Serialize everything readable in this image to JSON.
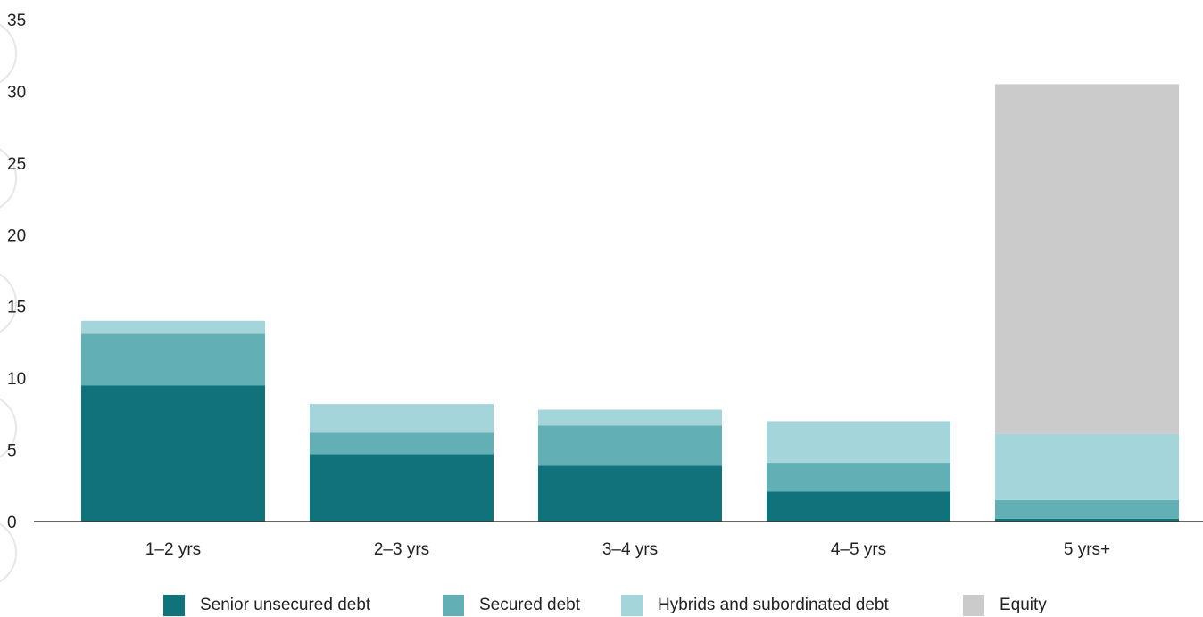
{
  "chart_data": {
    "type": "bar",
    "stacked": true,
    "categories": [
      "1–2 yrs",
      "2–3 yrs",
      "3–4 yrs",
      "4–5 yrs",
      "5 yrs+"
    ],
    "series": [
      {
        "name": "Senior unsecured debt",
        "color": "#10737c",
        "values": [
          9.5,
          4.7,
          3.9,
          2.1,
          0.2
        ]
      },
      {
        "name": "Secured debt",
        "color": "#62b0b6",
        "values": [
          3.6,
          1.5,
          2.8,
          2.0,
          1.3
        ]
      },
      {
        "name": "Hybrids and subordinated debt",
        "color": "#a4d5da",
        "values": [
          0.9,
          2.0,
          1.1,
          2.9,
          4.6
        ]
      },
      {
        "name": "Equity",
        "color": "#cbcbcb",
        "values": [
          0,
          0,
          0,
          0,
          24.4
        ]
      }
    ],
    "yticks": [
      "0",
      "5",
      "10",
      "15",
      "20",
      "25",
      "30",
      "35"
    ],
    "ylim": [
      0,
      35
    ],
    "grid": false,
    "legend_position": "bottom"
  }
}
